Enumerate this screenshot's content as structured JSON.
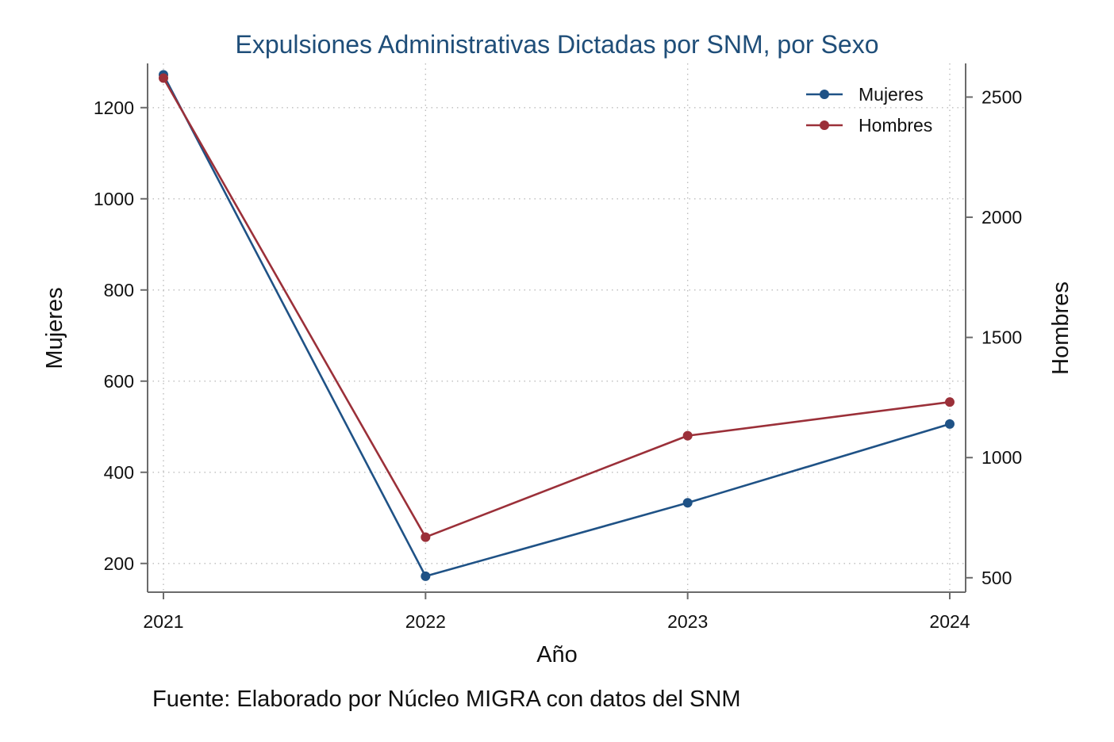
{
  "chart_data": {
    "type": "line",
    "title": "Expulsiones Administrativas Dictadas por SNM, por Sexo",
    "title_color": "#1f4e79",
    "xlabel": "Año",
    "ylabel_left": "Mujeres",
    "ylabel_right": "Hombres",
    "categories": [
      "2021",
      "2022",
      "2023",
      "2024"
    ],
    "y_left_ticks": [
      "200",
      "400",
      "600",
      "800",
      "1000",
      "1200"
    ],
    "y_right_ticks": [
      "500",
      "1000",
      "1500",
      "2000",
      "2500"
    ],
    "ylim_left": [
      137,
      1297
    ],
    "ylim_right": [
      440,
      2640
    ],
    "series": [
      {
        "name": "Mujeres",
        "axis": "left",
        "color": "#1f5286",
        "values": [
          1272,
          172,
          333,
          506
        ]
      },
      {
        "name": "Hombres",
        "axis": "right",
        "color": "#9b3039",
        "values": [
          2579,
          669,
          1091,
          1231
        ]
      }
    ],
    "legend_position": "top-right",
    "grid": true,
    "source": "Fuente: Elaborado por Núcleo MIGRA con datos del SNM"
  }
}
